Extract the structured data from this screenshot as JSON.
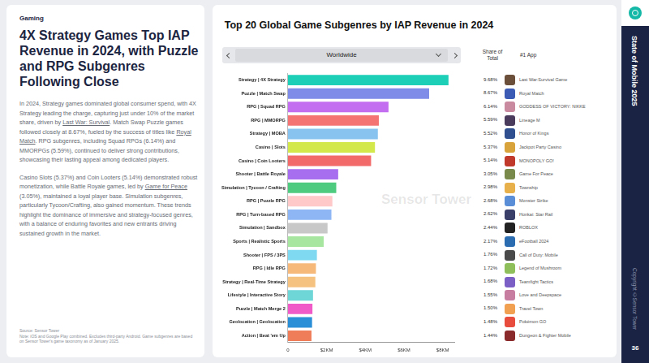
{
  "page": {
    "section": "Gaming",
    "headline": "4X Strategy Games Top IAP Revenue in 2024, with Puzzle and RPG Subgenres Following Close",
    "paragraphs": [
      [
        {
          "text": "In 2024, Strategy games dominated global consumer spend, with 4X Strategy leading the charge, capturing just under 10% of the market share, driven by "
        },
        {
          "text": "Last War: Survival",
          "underline": true
        },
        {
          "text": ". Match Swap Puzzle games followed closely at 8.67%, fueled by the success of titles like "
        },
        {
          "text": "Royal Match",
          "underline": true
        },
        {
          "text": ". RPG subgenres, including Squad RPGs (6.14%) and MMORPGs (5.59%), continued to deliver strong contributions, showcasing their lasting appeal among dedicated players."
        }
      ],
      [
        {
          "text": "Casino Slots (5.37%) and Coin Looters (5.14%) demonstrated robust monetization, while Battle Royale games, led by "
        },
        {
          "text": "Game for Peace",
          "underline": true
        },
        {
          "text": " (3.05%), maintained a loyal player base. Simulation subgenres, particularly Tycoon/Crafting, also gained momentum. These trends highlight the dominance of immersive and strategy-focused genres, with a balance of enduring favorites and new entrants driving sustained growth in the market."
        }
      ]
    ],
    "source": "Source: Sensor Tower",
    "note": "Note: iOS and Google Play combined. Excludes third-party Android. Game subgenres are based on Sensor Tower's game taxonomy as of January 2025.",
    "watermark": "Sensor Tower",
    "sidebar": {
      "title": "State of Mobile 2025",
      "copyright": "Copyright ©Sensor Tower",
      "page_number": "36"
    }
  },
  "chart_data": {
    "type": "bar",
    "orientation": "horizontal",
    "title": "Top 20 Global Game Subgenres by IAP Revenue in 2024",
    "filter": "Worldwide",
    "categories": [
      "Strategy | 4X Strategy",
      "Puzzle | Match Swap",
      "RPG | Squad RPG",
      "RPG | MMORPG",
      "Strategy | MOBA",
      "Casino | Slots",
      "Casino | Coin Looters",
      "Shooter | Battle Royale",
      "Simulation | Tycoon / Crafting",
      "RPG | Puzzle RPG",
      "RPG | Turn-based RPG",
      "Simulation | Sandbox",
      "Sports | Realistic Sports",
      "Shooter | FPS / 3PS",
      "RPG | Idle RPG",
      "Strategy | Real-Time Strategy",
      "Lifestyle | Interactive Story",
      "Puzzle | Match Merge 2",
      "Geolocation | Geolocation",
      "Action | Beat 'em Up"
    ],
    "values": [
      8.3,
      7.3,
      5.2,
      4.7,
      4.65,
      4.5,
      4.3,
      2.6,
      2.5,
      2.3,
      2.25,
      2.05,
      1.85,
      1.5,
      1.45,
      1.42,
      1.3,
      1.27,
      1.25,
      1.22
    ],
    "colors": [
      "#1ecfb8",
      "#7f8de8",
      "#c36ef0",
      "#f47373",
      "#88c3f0",
      "#d3e84a",
      "#f26a6a",
      "#a86ef0",
      "#4ecb7e",
      "#ffc9c9",
      "#8eb6f5",
      "#c8c8c8",
      "#a6e6a0",
      "#7fd9f0",
      "#f7b97a",
      "#f6c27f",
      "#6fd6d8",
      "#f05ac8",
      "#2a8fd6",
      "#f07d5a"
    ],
    "xlim": [
      0,
      8.6
    ],
    "xticks": [
      0,
      {
        "value": 2,
        "label": "$2KM"
      },
      {
        "value": 4,
        "label": "$4KM"
      },
      {
        "value": 6,
        "label": "$6KM"
      },
      {
        "value": 8,
        "label": "$8KM"
      }
    ],
    "grid": false,
    "table": {
      "share_header": "Share of Total",
      "app_header": "#1 App",
      "share_of_total": [
        "9.68%",
        "8.67%",
        "6.14%",
        "5.59%",
        "5.52%",
        "5.37%",
        "5.14%",
        "3.05%",
        "2.98%",
        "2.68%",
        "2.62%",
        "2.44%",
        "2.17%",
        "1.76%",
        "1.72%",
        "1.68%",
        "1.55%",
        "1.50%",
        "1.48%",
        "1.44%"
      ],
      "top_app": [
        "Last War:Survival Game",
        "Royal Match",
        "GODDESS OF VICTORY: NIKKE",
        "Lineage M",
        "Honor of Kings",
        "Jackpot Party Casino",
        "MONOPOLY GO!",
        "Game For Peace",
        "Township",
        "Monster Strike",
        "Honkai: Star Rail",
        "ROBLOX",
        "eFootball 2024",
        "Call of Duty: Mobile",
        "Legend of Mushroom",
        "Teamfight Tactics",
        "Love and Deepspace",
        "Travel Town",
        "Pokémon GO",
        "Dungeon & Fighter Mobile"
      ]
    }
  }
}
